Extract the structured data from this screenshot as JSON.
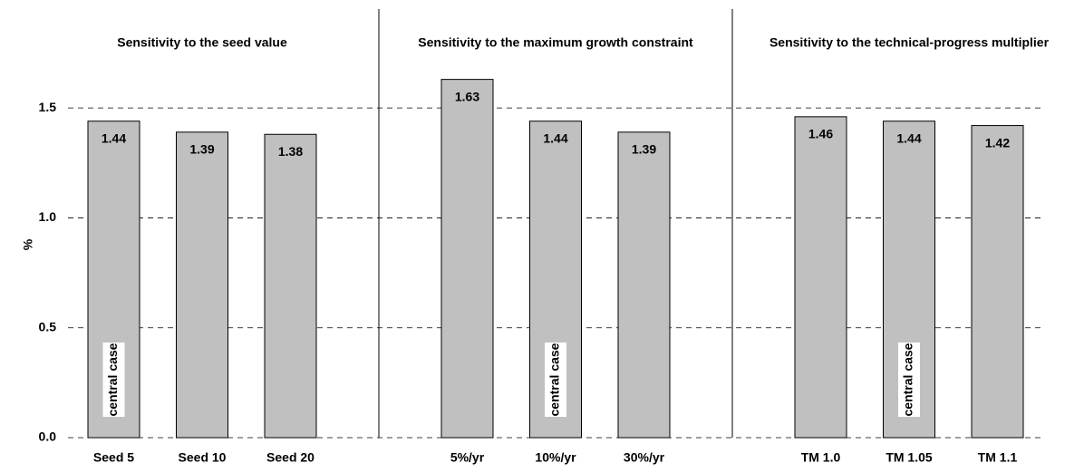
{
  "chart_data": {
    "type": "bar",
    "ylabel": "%",
    "ylim": [
      0,
      1.95
    ],
    "yticks": [
      {
        "value": 0,
        "label": "0.0"
      },
      0.5,
      {
        "value": 1,
        "label": "1.0"
      },
      1.5
    ],
    "grid": true,
    "color": "#c0c0c0",
    "panels": [
      {
        "title": "Sensitivity to the seed value",
        "categories": [
          "Seed 5",
          "Seed 10",
          "Seed 20"
        ],
        "values": [
          1.44,
          1.39,
          1.38
        ],
        "annotation": "central case",
        "annotation_category": "Seed 5"
      },
      {
        "title": "Sensitivity to the maximum growth constraint",
        "categories": [
          "5%/yr",
          "10%/yr",
          "30%/yr"
        ],
        "values": [
          1.63,
          1.44,
          1.39
        ],
        "annotation": "central case",
        "annotation_category": "10%/yr"
      },
      {
        "title": "Sensitivity to the technical-progress multiplier",
        "categories": [
          "TM 1.0",
          "TM 1.05",
          "TM 1.1"
        ],
        "values": [
          1.46,
          1.44,
          1.42
        ],
        "annotation": "central case",
        "annotation_category": "TM 1.05"
      }
    ]
  }
}
